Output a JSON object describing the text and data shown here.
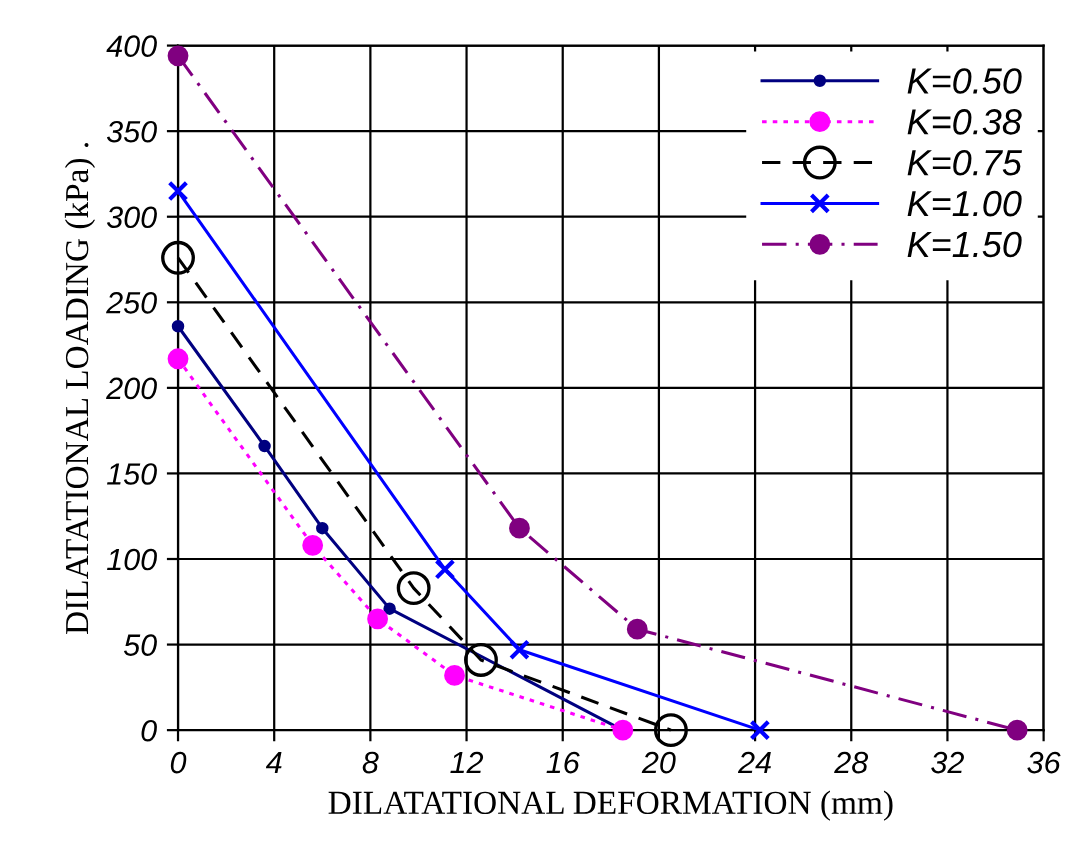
{
  "chart_data": {
    "type": "line",
    "xlabel": "DILATATIONAL DEFORMATION (mm)",
    "ylabel": "DILATATIONAL LOADING (kPa) .",
    "xlim": [
      0,
      36
    ],
    "xticks": [
      0,
      4,
      8,
      12,
      16,
      20,
      24,
      28,
      32,
      36
    ],
    "ylim": [
      0,
      400
    ],
    "yticks": [
      0,
      50,
      100,
      150,
      200,
      250,
      300,
      350,
      400
    ],
    "grid": true,
    "legend": "top right",
    "series": [
      {
        "name": "K=0.50",
        "color": "#000080",
        "x": [
          0,
          3.6,
          6.0,
          8.8,
          18.5
        ],
        "values": [
          236,
          166,
          118,
          71,
          0
        ],
        "marker": "circle",
        "line_style": "solid"
      },
      {
        "name": "K=0.38",
        "color": "#ff00ff",
        "x": [
          0,
          5.6,
          8.3,
          11.5,
          18.5
        ],
        "values": [
          217,
          108,
          65,
          32,
          0
        ],
        "marker": "circle",
        "line_style": "dotted"
      },
      {
        "name": "K=0.75",
        "color": "#000000",
        "x": [
          0,
          9.8,
          12.6,
          20.5
        ],
        "values": [
          276,
          83,
          41,
          0
        ],
        "marker": "circle",
        "line_style": "dashed"
      },
      {
        "name": "K=1.00",
        "color": "#0000ff",
        "x": [
          0,
          11.1,
          14.2,
          24.2
        ],
        "values": [
          315,
          94,
          47,
          0
        ],
        "marker": "cross",
        "line_style": "solid"
      },
      {
        "name": "K=1.50",
        "color": "#800080",
        "x": [
          0,
          14.2,
          19.1,
          34.9
        ],
        "values": [
          394,
          118,
          59,
          0
        ],
        "marker": "circle",
        "line_style": "dashdot"
      }
    ]
  }
}
